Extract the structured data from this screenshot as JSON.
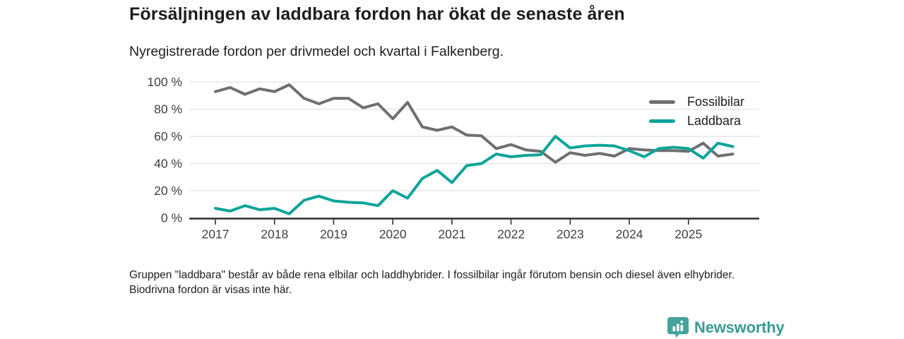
{
  "header": {
    "title": "Försäljningen av laddbara fordon har ökat de senaste åren",
    "subtitle": "Nyregistrerade fordon per drivmedel och kvartal i Falkenberg."
  },
  "chart_data": {
    "type": "line",
    "x": [
      "2017-Q1",
      "2017-Q2",
      "2017-Q3",
      "2017-Q4",
      "2018-Q1",
      "2018-Q2",
      "2018-Q3",
      "2018-Q4",
      "2019-Q1",
      "2019-Q2",
      "2019-Q3",
      "2019-Q4",
      "2020-Q1",
      "2020-Q2",
      "2020-Q3",
      "2020-Q4",
      "2021-Q1",
      "2021-Q2",
      "2021-Q3",
      "2021-Q4",
      "2022-Q1",
      "2022-Q2",
      "2022-Q3",
      "2022-Q4",
      "2023-Q1",
      "2023-Q2",
      "2023-Q3",
      "2023-Q4",
      "2024-Q1",
      "2024-Q2",
      "2024-Q3",
      "2024-Q4",
      "2025-Q1",
      "2025-Q2",
      "2025-Q3",
      "2025-Q4"
    ],
    "series": [
      {
        "name": "Fossilbilar",
        "color": "#6f6f6f",
        "values": [
          93,
          96,
          91,
          95,
          93,
          98,
          88,
          84,
          88,
          88,
          81,
          84,
          73,
          85,
          67,
          64.5,
          67,
          61,
          60.5,
          51,
          54,
          50,
          49,
          41,
          48,
          46,
          47.5,
          45.5,
          51,
          50,
          49.5,
          49.5,
          49,
          55,
          45.5,
          47
        ]
      },
      {
        "name": "Laddbara",
        "color": "#0ca49a",
        "values": [
          7,
          5,
          9,
          6,
          7,
          3,
          13,
          16,
          12.5,
          11.5,
          11,
          9,
          20,
          14.5,
          29,
          35,
          26,
          38.5,
          40,
          47,
          45,
          46,
          46.5,
          60,
          51.5,
          53,
          53.5,
          53,
          49.5,
          45,
          51,
          52,
          51,
          44,
          55,
          52.5
        ]
      }
    ],
    "title": "Försäljningen av laddbara fordon har ökat de senaste åren",
    "xlabel": "",
    "ylabel": "",
    "ylim": [
      0,
      100
    ],
    "yticks": [
      0,
      20,
      40,
      60,
      80,
      100
    ],
    "ytick_labels": [
      "0 %",
      "20 %",
      "40 %",
      "60 %",
      "80 %",
      "100 %"
    ],
    "xtick_labels": [
      "2017",
      "2018",
      "2019",
      "2020",
      "2021",
      "2022",
      "2023",
      "2024",
      "2025"
    ],
    "grid": "horizontal",
    "legend_position": "top-right"
  },
  "legend": {
    "items": [
      {
        "label": "Fossilbilar",
        "color": "#6f6f6f"
      },
      {
        "label": "Laddbara",
        "color": "#0ca49a"
      }
    ]
  },
  "footnote": "Gruppen \"laddbara\" består av både rena elbilar och laddhybrider. I fossilbilar ingår förutom bensin och diesel även elhybrider. Biodrivna fordon är visas inte här.",
  "branding": {
    "logo_text": "Newsworthy",
    "logo_color": "#3a9a93",
    "logo_icon": "bar-chart-pin-icon"
  },
  "colors": {
    "background": "#ffffff",
    "text": "#1d1d1d",
    "axis_labels": "#404040",
    "gridline": "#e4e4e4",
    "axis_line": "#2e2e2e"
  }
}
